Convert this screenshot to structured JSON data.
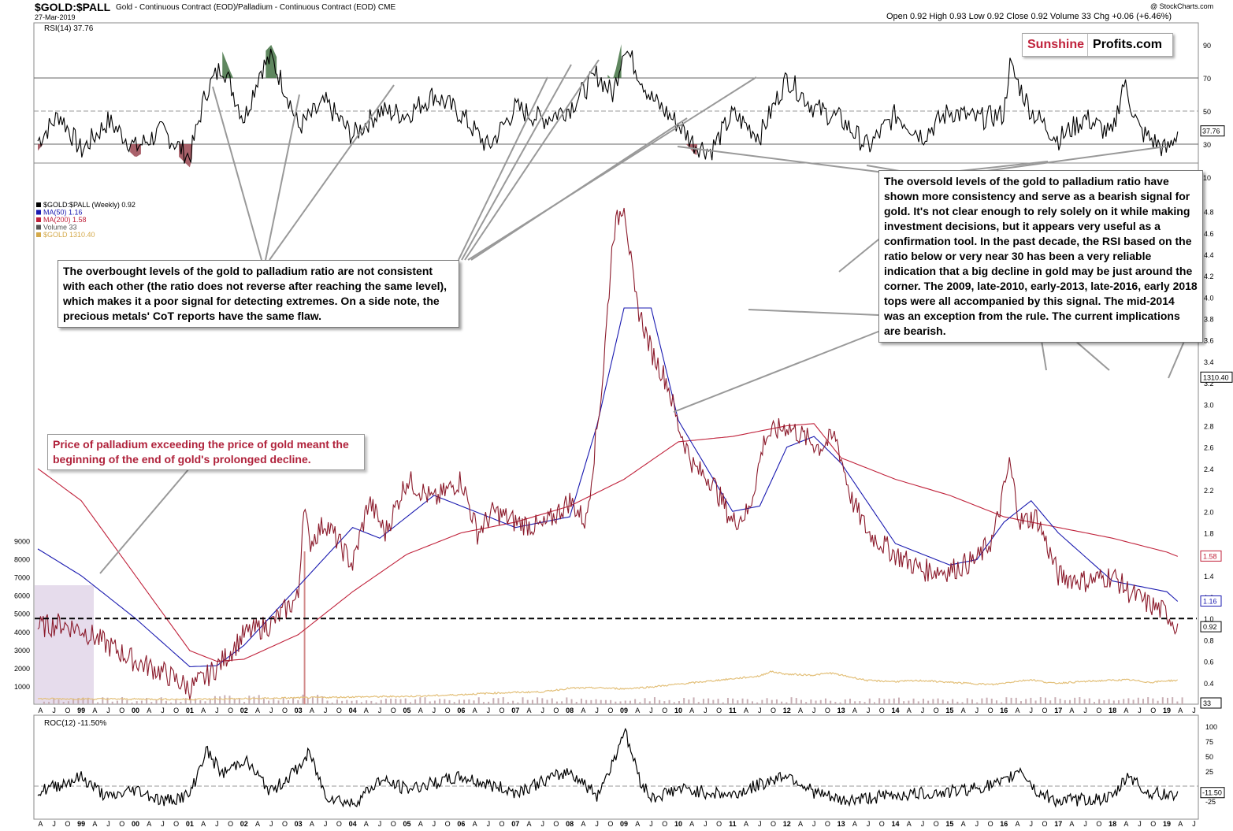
{
  "header": {
    "symbol": "$GOLD:$PALL",
    "description": "Gold - Continuous Contract (EOD)/Palladium - Continuous Contract (EOD)",
    "exchange": "CME",
    "date": "27-Mar-2019",
    "copyright": "@ StockCharts.com",
    "ohlc": "Open 0.92  High 0.93  Low 0.92  Close 0.92  Volume 33  Chg +0.06 (+6.46%)"
  },
  "logo": {
    "part1": "Sunshine",
    "part2": "Profits.com"
  },
  "rsi_panel": {
    "label": "RSI(14) 37.76",
    "ticks": [
      "90",
      "70",
      "50",
      "30",
      "10"
    ],
    "current": "37.76"
  },
  "main_panel": {
    "legend": [
      {
        "text": "$GOLD:$PALL (Weekly) 0.92",
        "color": "#000000"
      },
      {
        "text": "MA(50) 1.16",
        "color": "#1a1ab0"
      },
      {
        "text": "MA(200) 1.58",
        "color": "#c0223b"
      },
      {
        "text": "Volume 33",
        "color": "#555555"
      },
      {
        "text": "$GOLD 1310.40",
        "color": "#d4a94a"
      }
    ],
    "right_ticks": [
      "4.8",
      "4.6",
      "4.4",
      "4.2",
      "4.0",
      "3.8",
      "3.6",
      "3.4",
      "3.2",
      "3.0",
      "2.8",
      "2.6",
      "2.4",
      "2.2",
      "2.0",
      "1.8",
      "1.6",
      "1.4",
      "1.2",
      "1.0",
      "0.8",
      "0.6",
      "0.4",
      "0.2"
    ],
    "left_ticks": [
      "9000",
      "8000",
      "7000",
      "6000",
      "5000",
      "4000",
      "3000",
      "2000",
      "1000"
    ],
    "badges": [
      {
        "text": "1310.40",
        "color": "#000000"
      },
      {
        "text": "1.58",
        "color": "#c0223b"
      },
      {
        "text": "1.16",
        "color": "#1a1ab0"
      },
      {
        "text": "0.92",
        "color": "#000000"
      },
      {
        "text": "33",
        "color": "#000000"
      }
    ]
  },
  "roc_panel": {
    "label": "ROC(12) -11.50%",
    "ticks": [
      "100",
      "75",
      "50",
      "25",
      "-25"
    ],
    "current": "-11.50"
  },
  "x_axis": {
    "labels": [
      "A",
      "J",
      "O",
      "99",
      "A",
      "J",
      "O",
      "00",
      "A",
      "J",
      "O",
      "01",
      "A",
      "J",
      "O",
      "02",
      "A",
      "J",
      "O",
      "03",
      "A",
      "J",
      "O",
      "04",
      "A",
      "J",
      "O",
      "05",
      "A",
      "J",
      "O",
      "06",
      "A",
      "J",
      "O",
      "07",
      "A",
      "J",
      "O",
      "08",
      "A",
      "J",
      "O",
      "09",
      "A",
      "J",
      "O",
      "10",
      "A",
      "J",
      "O",
      "11",
      "A",
      "J",
      "O",
      "12",
      "A",
      "J",
      "O",
      "13",
      "A",
      "J",
      "O",
      "14",
      "A",
      "J",
      "O",
      "15",
      "A",
      "J",
      "O",
      "16",
      "A",
      "J",
      "O",
      "17",
      "A",
      "J",
      "O",
      "18",
      "A",
      "J",
      "O",
      "19",
      "A",
      "J"
    ]
  },
  "annotations": {
    "overbought": "The overbought levels of the gold to palladium ratio are not consistent with each other (the ratio does not reverse after reaching the same level), which makes it a poor signal for detecting extremes. On a side note, the precious metals' CoT reports have the same flaw.",
    "oversold": "The oversold levels of the gold to palladium ratio have shown more consistency and serve as a bearish signal for gold. It's not clear enough to rely solely on it while making investment decisions, but it appears very useful as a confirmation tool. In the past decade, the RSI based on the ratio below or very near 30 has been a very reliable indication that a big decline in gold may be just around the corner. The 2009, late-2010, early-2013, late-2016, early 2018 tops were all accompanied by this signal. The mid-2014 was an exception from the rule. The current implications are bearish.",
    "palladium": "Price of palladium exceeding the price of gold meant the beginning of the end of gold's prolonged decline."
  },
  "colors": {
    "ratio": "#000000",
    "ratio_below": "#8b1a2b",
    "ma50": "#1a1ab0",
    "ma200": "#c0223b",
    "gold": "#e3c07a",
    "overbought_fill": "#4e7a4e",
    "oversold_fill": "#a0505a",
    "shade": "#ddd0e6"
  },
  "chart_data": {
    "type": "line",
    "title": "$GOLD:$PALL",
    "ylim_ratio": [
      0.2,
      4.9
    ],
    "ylim_gold_left": [
      0,
      9500
    ],
    "reference_line": 1.0,
    "series": [
      {
        "name": "$GOLD:$PALL (Weekly) 0.92",
        "x": [
          1998.2,
          1998.6,
          1999.0,
          1999.5,
          2000.0,
          2000.5,
          2001.0,
          2001.3,
          2001.6,
          2002.0,
          2002.5,
          2003.0,
          2003.1,
          2003.2,
          2003.5,
          2004.0,
          2004.3,
          2004.6,
          2005.0,
          2005.5,
          2006.0,
          2006.3,
          2006.6,
          2007.0,
          2007.5,
          2008.0,
          2008.3,
          2008.6,
          2008.8,
          2009.0,
          2009.2,
          2009.5,
          2009.8,
          2010.0,
          2010.3,
          2010.6,
          2011.0,
          2011.3,
          2011.6,
          2012.0,
          2012.3,
          2012.6,
          2012.9,
          2013.2,
          2013.5,
          2014.0,
          2014.5,
          2015.0,
          2015.5,
          2015.8,
          2016.0,
          2016.1,
          2016.3,
          2016.6,
          2017.0,
          2017.5,
          2018.0,
          2018.3,
          2018.6,
          2019.0,
          2019.2
        ],
        "values": [
          0.92,
          0.95,
          0.9,
          0.75,
          0.6,
          0.5,
          0.35,
          0.45,
          0.6,
          0.85,
          0.95,
          1.2,
          2.1,
          1.7,
          1.9,
          1.5,
          2.1,
          1.8,
          2.3,
          2.1,
          2.3,
          1.8,
          2.0,
          1.9,
          1.85,
          2.1,
          1.9,
          3.2,
          4.6,
          4.9,
          4.0,
          3.5,
          3.2,
          2.8,
          2.4,
          2.3,
          1.9,
          2.0,
          2.7,
          2.8,
          2.7,
          2.6,
          2.7,
          2.1,
          1.8,
          1.6,
          1.45,
          1.45,
          1.55,
          1.75,
          2.2,
          2.45,
          1.9,
          1.95,
          1.4,
          1.35,
          1.4,
          1.25,
          1.15,
          1.05,
          0.92
        ]
      },
      {
        "name": "MA(50) 1.16",
        "x": [
          1998.2,
          1999.0,
          2000.0,
          2001.0,
          2001.5,
          2002.0,
          2003.0,
          2004.0,
          2004.5,
          2005.0,
          2005.5,
          2006.0,
          2007.0,
          2008.0,
          2008.5,
          2009.0,
          2009.5,
          2010.0,
          2011.0,
          2011.5,
          2012.0,
          2012.5,
          2013.0,
          2014.0,
          2015.0,
          2015.5,
          2016.0,
          2016.5,
          2017.0,
          2018.0,
          2019.0,
          2019.2
        ],
        "values": [
          1.65,
          1.4,
          1.0,
          0.55,
          0.56,
          0.75,
          1.3,
          1.85,
          1.75,
          1.95,
          2.15,
          2.05,
          1.85,
          1.95,
          2.8,
          3.9,
          3.9,
          2.85,
          2.0,
          2.05,
          2.6,
          2.7,
          2.45,
          1.7,
          1.5,
          1.55,
          1.9,
          2.1,
          1.8,
          1.35,
          1.25,
          1.16
        ]
      },
      {
        "name": "MA(200) 1.58",
        "x": [
          1998.2,
          1999.0,
          2000.0,
          2001.0,
          2001.5,
          2002.0,
          2003.0,
          2004.0,
          2005.0,
          2006.0,
          2007.0,
          2008.0,
          2009.0,
          2010.0,
          2011.0,
          2012.0,
          2012.5,
          2013.0,
          2014.0,
          2015.0,
          2016.0,
          2017.0,
          2018.0,
          2019.0,
          2019.2
        ],
        "values": [
          2.4,
          2.1,
          1.4,
          0.7,
          0.6,
          0.62,
          0.85,
          1.25,
          1.6,
          1.8,
          1.9,
          2.05,
          2.3,
          2.65,
          2.7,
          2.8,
          2.82,
          2.5,
          2.3,
          2.15,
          1.95,
          1.85,
          1.75,
          1.62,
          1.58
        ]
      },
      {
        "name": "$GOLD 1310.40",
        "x": [
          1998.2,
          1999.0,
          2000.0,
          2001.0,
          2002.0,
          2003.0,
          2004.0,
          2005.0,
          2005.8,
          2006.5,
          2007.0,
          2007.5,
          2008.0,
          2008.5,
          2009.0,
          2009.5,
          2010.0,
          2010.5,
          2011.0,
          2011.5,
          2011.7,
          2012.0,
          2012.5,
          2012.8,
          2013.0,
          2013.5,
          2014.0,
          2014.5,
          2015.0,
          2015.8,
          2016.2,
          2016.5,
          2016.9,
          2017.5,
          2018.0,
          2018.3,
          2018.7,
          2019.0,
          2019.2
        ],
        "values": [
          300,
          290,
          280,
          270,
          300,
          350,
          400,
          430,
          500,
          600,
          650,
          680,
          880,
          900,
          850,
          950,
          1100,
          1250,
          1400,
          1550,
          1800,
          1650,
          1600,
          1720,
          1600,
          1300,
          1250,
          1300,
          1200,
          1080,
          1250,
          1350,
          1150,
          1250,
          1320,
          1340,
          1200,
          1290,
          1310
        ]
      }
    ],
    "rsi": {
      "name": "RSI(14) 37.76",
      "x": [
        1998.2,
        1998.6,
        1999.0,
        1999.5,
        2000.0,
        2000.5,
        2001.0,
        2001.3,
        2001.6,
        2002.0,
        2002.3,
        2002.5,
        2002.8,
        2003.0,
        2003.5,
        2004.0,
        2004.5,
        2005.0,
        2005.5,
        2006.0,
        2006.5,
        2007.0,
        2007.5,
        2008.0,
        2008.5,
        2008.8,
        2009.0,
        2009.5,
        2010.0,
        2010.3,
        2010.6,
        2011.0,
        2011.5,
        2012.0,
        2012.5,
        2013.0,
        2013.5,
        2014.0,
        2014.5,
        2015.0,
        2015.5,
        2016.0,
        2016.1,
        2016.5,
        2017.0,
        2017.5,
        2018.0,
        2018.2,
        2018.5,
        2019.0,
        2019.2
      ],
      "values": [
        32,
        48,
        26,
        44,
        28,
        38,
        22,
        62,
        78,
        45,
        75,
        82,
        60,
        40,
        55,
        35,
        50,
        48,
        60,
        48,
        28,
        52,
        45,
        52,
        72,
        60,
        90,
        58,
        42,
        30,
        26,
        48,
        35,
        70,
        52,
        45,
        28,
        48,
        35,
        50,
        45,
        48,
        78,
        50,
        33,
        46,
        35,
        68,
        38,
        26,
        37.76
      ]
    },
    "roc": {
      "name": "ROC(12) -11.50%",
      "x": [
        1998.2,
        1999.0,
        1999.5,
        2000.0,
        2000.5,
        2001.0,
        2001.3,
        2001.6,
        2002.0,
        2002.5,
        2003.0,
        2003.2,
        2003.5,
        2004.0,
        2004.5,
        2005.0,
        2006.0,
        2007.0,
        2008.0,
        2008.5,
        2008.8,
        2009.0,
        2009.3,
        2009.5,
        2010.0,
        2011.0,
        2012.0,
        2012.5,
        2013.0,
        2014.0,
        2015.0,
        2016.0,
        2016.3,
        2016.6,
        2017.0,
        2018.0,
        2018.3,
        2018.6,
        2019.0,
        2019.2
      ],
      "values": [
        -10,
        15,
        -20,
        -5,
        -25,
        -15,
        60,
        20,
        45,
        -10,
        30,
        55,
        -15,
        -30,
        10,
        -5,
        15,
        -10,
        25,
        -15,
        40,
        95,
        10,
        -20,
        -5,
        -15,
        20,
        -10,
        -25,
        -15,
        -10,
        5,
        30,
        -10,
        -25,
        -20,
        20,
        -10,
        -15,
        -11.5
      ]
    }
  }
}
